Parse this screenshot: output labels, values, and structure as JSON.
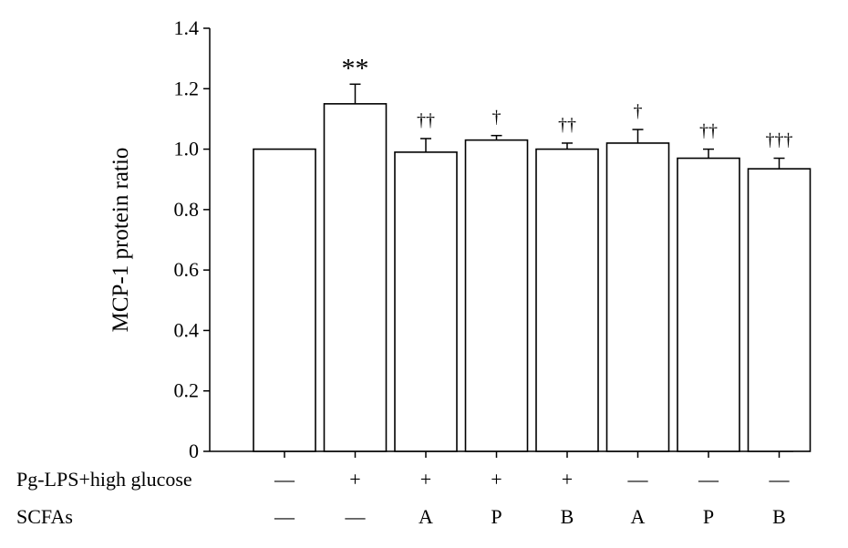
{
  "chart_data": {
    "type": "bar",
    "title": "",
    "ylabel": "MCP-1 protein ratio",
    "xlabel": "",
    "ylim": [
      0,
      1.4
    ],
    "yticks": [
      "0",
      "0.2",
      "0.4",
      "0.6",
      "0.8",
      "1.0",
      "1.2",
      "1.4"
    ],
    "grid": false,
    "bar_fill": "#ffffff",
    "bar_stroke": "#000000",
    "values": [
      1.0,
      1.15,
      0.99,
      1.03,
      1.0,
      1.02,
      0.97,
      0.935
    ],
    "errors": [
      0.0,
      0.065,
      0.045,
      0.015,
      0.02,
      0.045,
      0.03,
      0.035
    ],
    "significance": [
      "",
      "**",
      "††",
      "†",
      "††",
      "†",
      "††",
      "†††"
    ],
    "condition_rows": [
      {
        "label": "Pg-LPS+high glucose",
        "values": [
          "—",
          "+",
          "+",
          "+",
          "+",
          "—",
          "—",
          "—"
        ]
      },
      {
        "label": "SCFAs",
        "values": [
          "—",
          "—",
          "A",
          "P",
          "B",
          "A",
          "P",
          "B"
        ]
      }
    ]
  }
}
